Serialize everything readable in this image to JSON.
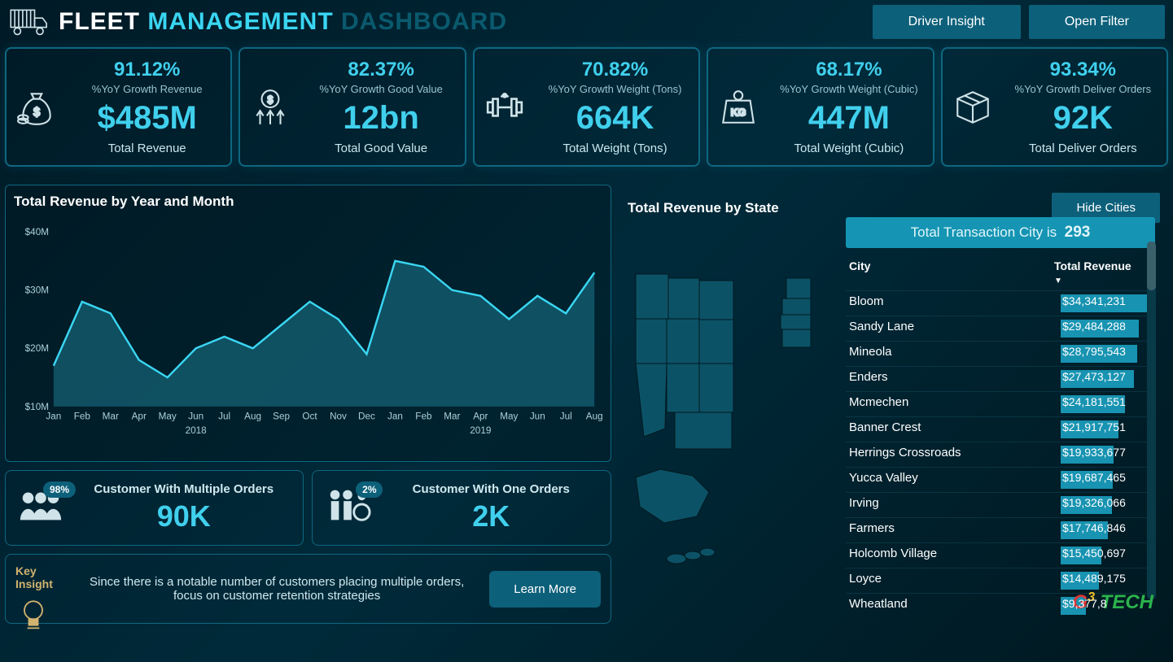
{
  "colors": {
    "accent": "#40d0ed",
    "panel_border": "#0e6780",
    "button_bg": "#0d607a",
    "bar_fill": "#1893b1",
    "banner_bg": "#1595b3",
    "bg_gradient": [
      "#001a26",
      "#002a3a",
      "#001820"
    ]
  },
  "header": {
    "title_fleet": "FLEET",
    "title_mgmt": "MANAGEMENT",
    "title_dash": "DASHBOARD",
    "btn_driver": "Driver Insight",
    "btn_filter": "Open Filter"
  },
  "kpis": [
    {
      "icon": "money-bag",
      "pct": "91.12%",
      "label": "%YoY Growth Revenue",
      "value": "$485M",
      "total": "Total Revenue"
    },
    {
      "icon": "coin-arrows",
      "pct": "82.37%",
      "label": "%YoY Growth Good Value",
      "value": "12bn",
      "total": "Total Good Value"
    },
    {
      "icon": "dumbbell",
      "pct": "70.82%",
      "label": "%YoY Growth Weight (Tons)",
      "value": "664K",
      "total": "Total Weight (Tons)"
    },
    {
      "icon": "kg-weight",
      "pct": "68.17%",
      "label": "%YoY Growth Weight (Cubic)",
      "value": "447M",
      "total": "Total Weight (Cubic)"
    },
    {
      "icon": "package",
      "pct": "93.34%",
      "label": "%YoY Growth Deliver Orders",
      "value": "92K",
      "total": "Total Deliver Orders"
    }
  ],
  "chart": {
    "title": "Total Revenue by Year and Month",
    "type": "area",
    "yticks": [
      "$10M",
      "$20M",
      "$30M",
      "$40M"
    ],
    "ylim": [
      10,
      40
    ],
    "xlabels": [
      "Jan",
      "Feb",
      "Mar",
      "Apr",
      "May",
      "Jun",
      "Jul",
      "Aug",
      "Sep",
      "Oct",
      "Nov",
      "Dec",
      "Jan",
      "Feb",
      "Mar",
      "Apr",
      "May",
      "Jun",
      "Jul",
      "Aug"
    ],
    "xyears": {
      "2018": 5,
      "2019": 15
    },
    "values": [
      17,
      28,
      26,
      18,
      15,
      20,
      22,
      20,
      24,
      28,
      25,
      19,
      35,
      34,
      30,
      29,
      25,
      29,
      26,
      33
    ],
    "line_color": "#3ad6f2",
    "fill_color": "rgba(28,120,142,0.55)",
    "line_width": 2.5
  },
  "customers": {
    "multi": {
      "pct": "98%",
      "label": "Customer With Multiple Orders",
      "value": "90K"
    },
    "one": {
      "pct": "2%",
      "label": "Customer With One Orders",
      "value": "2K"
    }
  },
  "insight": {
    "title": "Key Insight",
    "body": "Since there is a notable number of customers placing multiple orders, focus on customer retention strategies",
    "learn_btn": "Learn More"
  },
  "state": {
    "title": "Total Revenue by State",
    "hide_btn": "Hide Cities",
    "banner_prefix": "Total Transaction City is",
    "banner_num": "293",
    "col_city": "City",
    "col_rev": "Total Revenue",
    "max_rev": 34341231,
    "rows": [
      {
        "city": "Bloom",
        "rev_txt": "$34,341,231",
        "rev": 34341231
      },
      {
        "city": "Sandy Lane",
        "rev_txt": "$29,484,288",
        "rev": 29484288
      },
      {
        "city": "Mineola",
        "rev_txt": "$28,795,543",
        "rev": 28795543
      },
      {
        "city": "Enders",
        "rev_txt": "$27,473,127",
        "rev": 27473127
      },
      {
        "city": "Mcmechen",
        "rev_txt": "$24,181,551",
        "rev": 24181551
      },
      {
        "city": "Banner Crest",
        "rev_txt": "$21,917,751",
        "rev": 21917751
      },
      {
        "city": "Herrings Crossroads",
        "rev_txt": "$19,933,677",
        "rev": 19933677
      },
      {
        "city": "Yucca Valley",
        "rev_txt": "$19,687,465",
        "rev": 19687465
      },
      {
        "city": "Irving",
        "rev_txt": "$19,326,066",
        "rev": 19326066
      },
      {
        "city": "Farmers",
        "rev_txt": "$17,746,846",
        "rev": 17746846
      },
      {
        "city": "Holcomb Village",
        "rev_txt": "$15,450,697",
        "rev": 15450697
      },
      {
        "city": "Loyce",
        "rev_txt": "$14,489,175",
        "rev": 14489175
      },
      {
        "city": "Wheatland",
        "rev_txt": "$9,377,8",
        "rev": 9377800
      }
    ]
  },
  "watermark": {
    "g": "G",
    "three": "3",
    "tech": " TECH"
  }
}
